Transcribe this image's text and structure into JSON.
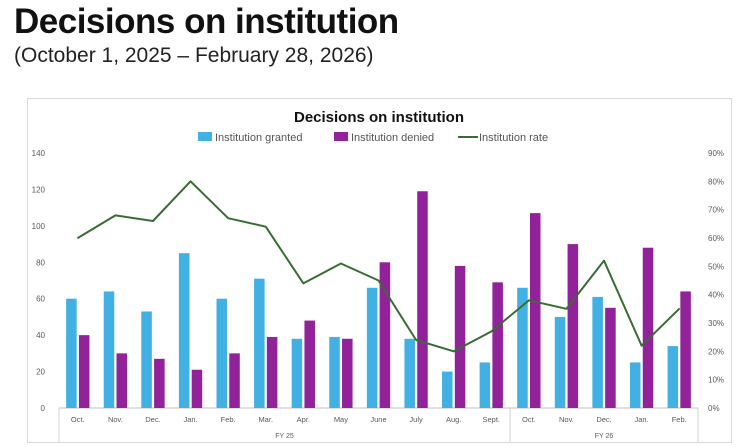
{
  "header": {
    "title": "Decisions on institution",
    "subtitle": "(October 1, 2025 – February 28, 2026)"
  },
  "colors": {
    "granted": "#41b0e3",
    "denied": "#92229a",
    "rate": "#3a6b35",
    "axis_text": "#595959",
    "gridline": "#d9d9d9"
  },
  "chart_data": {
    "type": "bar+line",
    "title": "Decisions on institution",
    "legend": [
      "Institution granted",
      "Institution denied",
      "Institution rate"
    ],
    "legend_position": "top",
    "categories": [
      "Oct.",
      "Nov.",
      "Dec.",
      "Jan.",
      "Feb.",
      "Mar.",
      "Apr.",
      "May",
      "June",
      "July",
      "Aug.",
      "Sept.",
      "Oct.",
      "Nov.",
      "Dec.",
      "Jan.",
      "Feb."
    ],
    "groups": [
      {
        "label": "FY 25",
        "start": 0,
        "end": 11
      },
      {
        "label": "FY 26",
        "start": 12,
        "end": 16
      }
    ],
    "series": [
      {
        "name": "Institution granted",
        "type": "bar",
        "axis": "left",
        "values": [
          60,
          64,
          53,
          85,
          60,
          71,
          38,
          39,
          66,
          38,
          20,
          25,
          66,
          50,
          61,
          25,
          34
        ]
      },
      {
        "name": "Institution denied",
        "type": "bar",
        "axis": "left",
        "values": [
          40,
          30,
          27,
          21,
          30,
          39,
          48,
          38,
          80,
          119,
          78,
          69,
          107,
          90,
          55,
          88,
          64
        ]
      },
      {
        "name": "Institution rate",
        "type": "line",
        "axis": "right",
        "values": [
          60,
          68,
          66,
          80,
          67,
          64,
          44,
          51,
          45,
          24,
          20,
          27,
          38,
          35,
          52,
          22,
          35
        ]
      }
    ],
    "y_left": {
      "min": 0,
      "max": 140,
      "ticks": [
        0,
        20,
        40,
        60,
        80,
        100,
        120,
        140
      ]
    },
    "y_right": {
      "min": 0,
      "max": 90,
      "ticks": [
        0,
        10,
        20,
        30,
        40,
        50,
        60,
        70,
        80,
        90
      ],
      "tick_labels": [
        "0%",
        "10%",
        "20%",
        "30%",
        "40%",
        "50%",
        "60%",
        "70%",
        "80%",
        "90%"
      ]
    },
    "grid": false
  }
}
